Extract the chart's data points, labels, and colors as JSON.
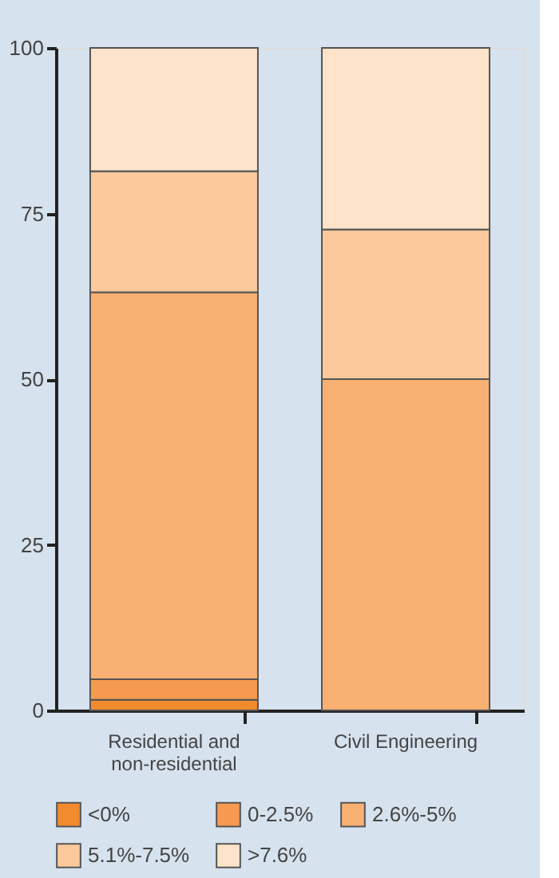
{
  "chart_data": {
    "type": "bar",
    "stacked": true,
    "categories": [
      "Residential and\nnon-residential",
      "Civil Engineering"
    ],
    "series": [
      {
        "name": "<0%",
        "color": "#f28a2e",
        "values": [
          1.6,
          0
        ]
      },
      {
        "name": "0-2.5%",
        "color": "#f59a4e",
        "values": [
          3.1,
          0
        ]
      },
      {
        "name": "2.6%-5%",
        "color": "#f9b073",
        "values": [
          58.4,
          50
        ]
      },
      {
        "name": "5.1%-7.5%",
        "color": "#fbc99c",
        "values": [
          18.3,
          22.6
        ]
      },
      {
        "name": ">7.6%",
        "color": "#fde3c9",
        "values": [
          18.6,
          27.4
        ]
      }
    ],
    "ylim": [
      0,
      100
    ],
    "yticks": [
      0,
      25,
      50,
      75,
      100
    ],
    "grid": false,
    "legend": "bottom"
  }
}
